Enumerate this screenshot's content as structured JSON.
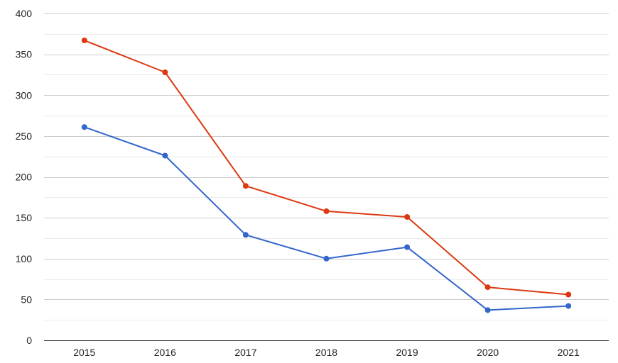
{
  "chart_data": {
    "type": "line",
    "x": [
      "2015",
      "2016",
      "2017",
      "2018",
      "2019",
      "2020",
      "2021"
    ],
    "series": [
      {
        "values": [
          367,
          328,
          189,
          158,
          151,
          65,
          56
        ],
        "color": "#dc3912"
      },
      {
        "values": [
          261,
          226,
          129,
          100,
          114,
          37,
          42
        ],
        "color": "#3366cc"
      }
    ],
    "ylim": [
      0,
      400
    ],
    "yticks": [
      "0",
      "50",
      "100",
      "150",
      "200",
      "250",
      "300",
      "350",
      "400"
    ],
    "grid": true,
    "minor_grid": true,
    "axis_color": "#333333",
    "grid_color": "#cccccc",
    "minor_grid_color": "#ebebeb",
    "title": "",
    "xlabel": "",
    "ylabel": "",
    "legend": "none"
  }
}
